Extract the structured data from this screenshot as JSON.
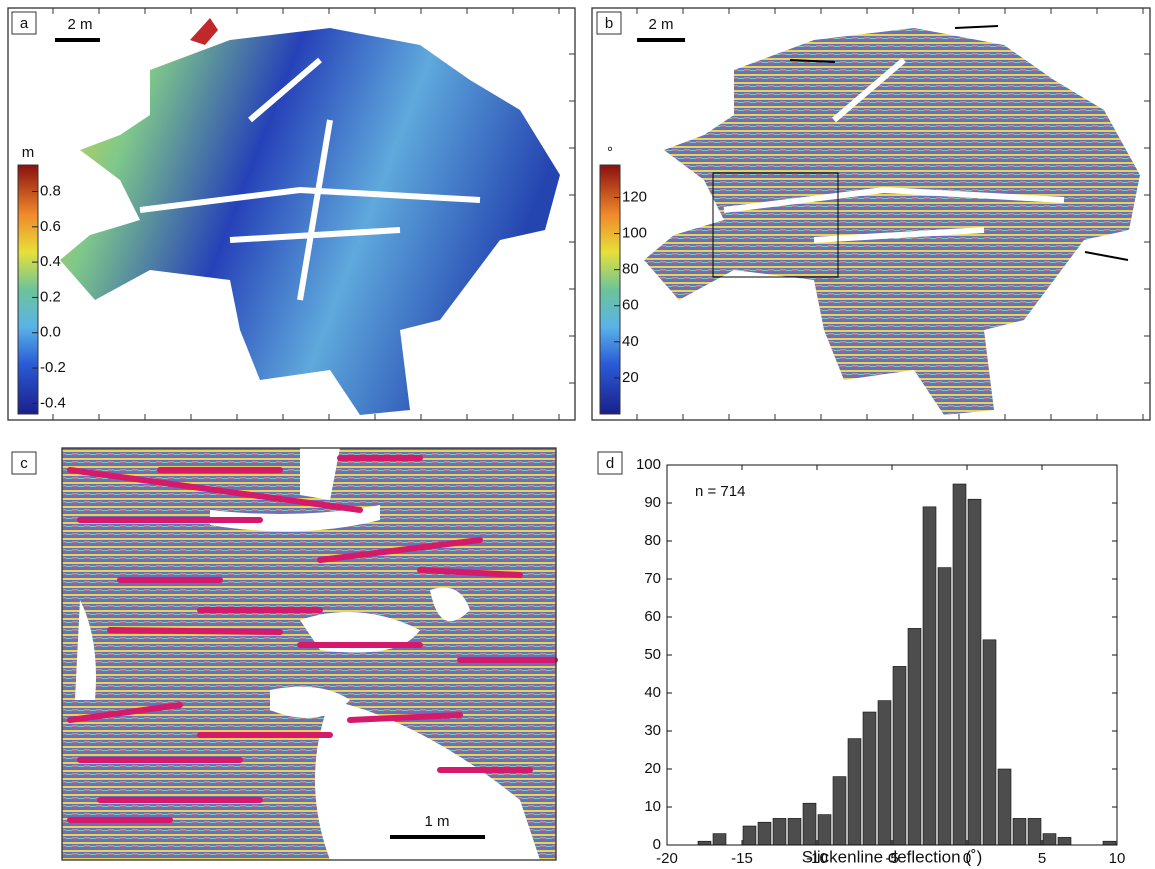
{
  "chart_data": [
    {
      "type": "map",
      "panel": "a",
      "scale_bar": "2 m",
      "colorbar": {
        "title": "m",
        "lim": [
          -0.46,
          0.95
        ],
        "ticks": [
          -0.4,
          -0.2,
          {
            "value": 0,
            "label": "0.0"
          },
          0.2,
          0.4,
          0.6,
          0.8
        ]
      }
    },
    {
      "type": "map",
      "panel": "b",
      "scale_bar": "2 m",
      "colorbar": {
        "title": "°",
        "lim": [
          0,
          138
        ],
        "ticks": [
          20,
          40,
          60,
          80,
          100,
          120
        ]
      }
    },
    {
      "type": "map",
      "panel": "c",
      "scale_bar": "1 m"
    },
    {
      "type": "histogram",
      "panel": "d",
      "annotation": "n = 714",
      "xlabel": "Slickenline deflection (˚)",
      "color": "#4d4d4d",
      "bins": [
        -18,
        -17,
        -16,
        -15,
        -14,
        -13,
        -12,
        -11,
        -10,
        -9,
        -8,
        -7,
        -6,
        -5,
        -4,
        -3,
        -2,
        -1,
        0,
        1,
        2,
        3,
        4,
        5,
        6,
        7,
        8,
        9,
        10
      ],
      "counts": [
        1,
        3,
        0,
        5,
        6,
        7,
        7,
        11,
        8,
        18,
        28,
        35,
        38,
        47,
        57,
        89,
        73,
        95,
        91,
        54,
        20,
        7,
        7,
        3,
        2,
        0,
        0,
        1
      ],
      "xlim": [
        -20,
        10
      ],
      "xticks": [
        -20,
        -15,
        -10,
        -5,
        0,
        5,
        10
      ],
      "ylim": [
        0,
        100
      ],
      "yticks": [
        0,
        10,
        20,
        30,
        40,
        50,
        60,
        70,
        80,
        90,
        100
      ]
    }
  ]
}
